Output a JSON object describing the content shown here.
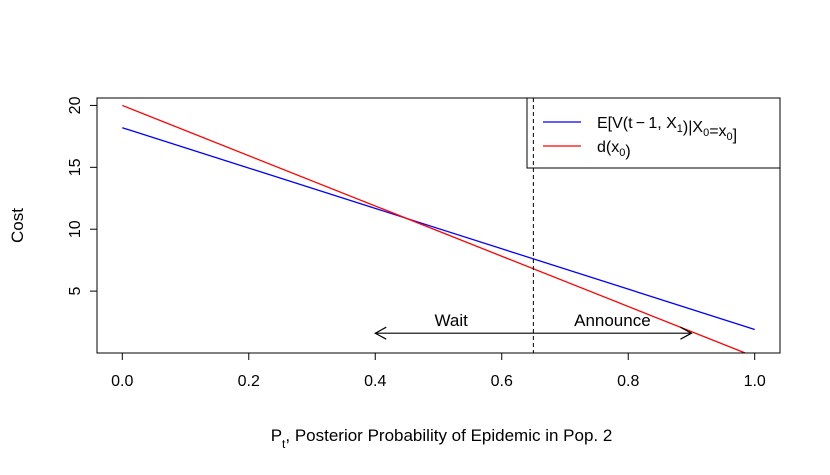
{
  "chart_data": {
    "type": "line",
    "xlabel": "P",
    "xlabel_sub": "t",
    "xlabel_rest": ", Posterior Probability of Epidemic in Pop. 2",
    "ylabel": "Cost",
    "xlim": [
      -0.04,
      1.04
    ],
    "ylim": [
      0,
      20.6
    ],
    "x_ticks": [
      0.0,
      0.2,
      0.4,
      0.6,
      0.8,
      1.0
    ],
    "x_tick_labels": [
      "0.0",
      "0.2",
      "0.4",
      "0.6",
      "0.8",
      "1.0"
    ],
    "y_ticks": [
      5,
      10,
      15,
      20
    ],
    "y_tick_labels": [
      "5",
      "10",
      "15",
      "20"
    ],
    "grid": false,
    "legend_position": "top-right",
    "series": [
      {
        "id": "expected_value",
        "legend_parts": [
          {
            "text": "E[V(t − 1, X",
            "sub": false
          },
          {
            "text": "1",
            "sub": true
          },
          {
            "text": ")|X",
            "sub": false
          },
          {
            "text": "0",
            "sub": true
          },
          {
            "text": "=x",
            "sub": false
          },
          {
            "text": "0",
            "sub": true
          },
          {
            "text": "]",
            "sub": false
          }
        ],
        "color": "#0000ff",
        "x": [
          0.0,
          1.0
        ],
        "y": [
          18.2,
          1.9
        ]
      },
      {
        "id": "d_x0",
        "legend_parts": [
          {
            "text": "d(x",
            "sub": false
          },
          {
            "text": "0",
            "sub": true
          },
          {
            "text": ")",
            "sub": false
          }
        ],
        "color": "#ff0000",
        "x": [
          0.0,
          0.985
        ],
        "y": [
          20.0,
          0.0
        ]
      }
    ],
    "vline": {
      "x": 0.65,
      "style": "dashed",
      "color": "#000000"
    },
    "annotations": [
      {
        "text": "Wait",
        "x": 0.52,
        "y": 2.2
      },
      {
        "text": "Announce",
        "x": 0.775,
        "y": 2.2
      }
    ],
    "arrow": {
      "x_from": 0.4,
      "x_to": 0.9,
      "y": 1.6,
      "double_headed": true
    }
  }
}
